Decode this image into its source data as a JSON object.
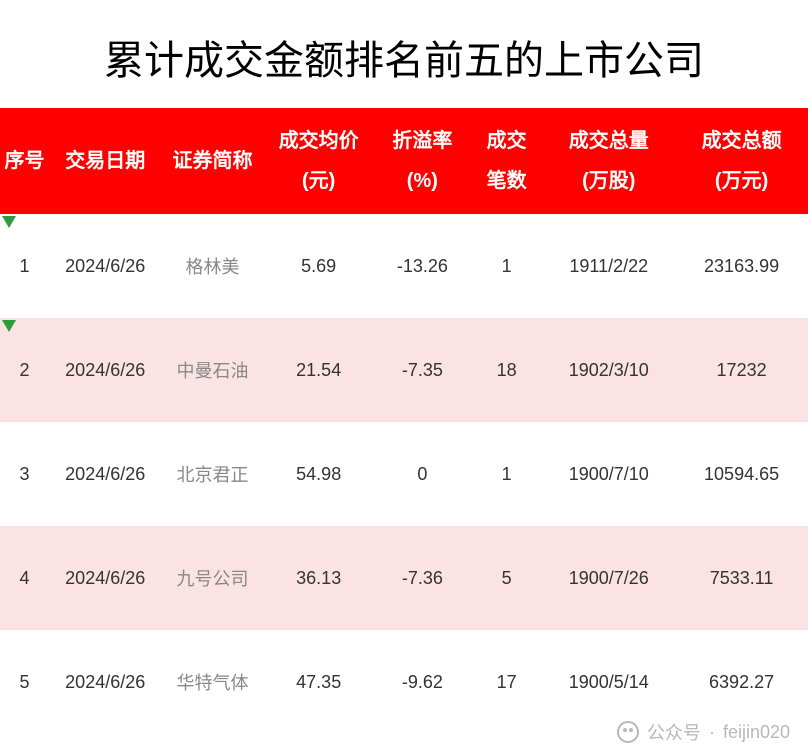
{
  "title": "累计成交金额排名前五的上市公司",
  "header": {
    "idx": "序号",
    "date": "交易日期",
    "name": "证券简称",
    "price_l1": "成交均价",
    "price_l2": "(元)",
    "rate_l1": "折溢率",
    "rate_l2": "(%)",
    "count_l1": "成交",
    "count_l2": "笔数",
    "vol_l1": "成交总量",
    "vol_l2": "(万股)",
    "amt_l1": "成交总额",
    "amt_l2": "(万元)"
  },
  "rows": [
    {
      "idx": "1",
      "date": "2024/6/26",
      "name": "格林美",
      "price": "5.69",
      "rate": "-13.26",
      "count": "1",
      "vol": "1911/2/22",
      "amt": "23163.99",
      "arrow": true
    },
    {
      "idx": "2",
      "date": "2024/6/26",
      "name": "中曼石油",
      "price": "21.54",
      "rate": "-7.35",
      "count": "18",
      "vol": "1902/3/10",
      "amt": "17232",
      "arrow": true
    },
    {
      "idx": "3",
      "date": "2024/6/26",
      "name": "北京君正",
      "price": "54.98",
      "rate": "0",
      "count": "1",
      "vol": "1900/7/10",
      "amt": "10594.65",
      "arrow": false
    },
    {
      "idx": "4",
      "date": "2024/6/26",
      "name": "九号公司",
      "price": "36.13",
      "rate": "-7.36",
      "count": "5",
      "vol": "1900/7/26",
      "amt": "7533.11",
      "arrow": false
    },
    {
      "idx": "5",
      "date": "2024/6/26",
      "name": "华特气体",
      "price": "47.35",
      "rate": "-9.62",
      "count": "17",
      "vol": "1900/5/14",
      "amt": "6392.27",
      "arrow": false
    }
  ],
  "watermark": {
    "label": "公众号",
    "id": "feijin020"
  },
  "style": {
    "header_bg": "#ff0000",
    "header_fg": "#ffffff",
    "row_even_bg": "#fce3e3",
    "row_odd_bg": "#ffffff",
    "arrow_color": "#2e9c3c",
    "title_fontsize": 40,
    "header_fontsize": 20,
    "cell_fontsize": 18
  }
}
